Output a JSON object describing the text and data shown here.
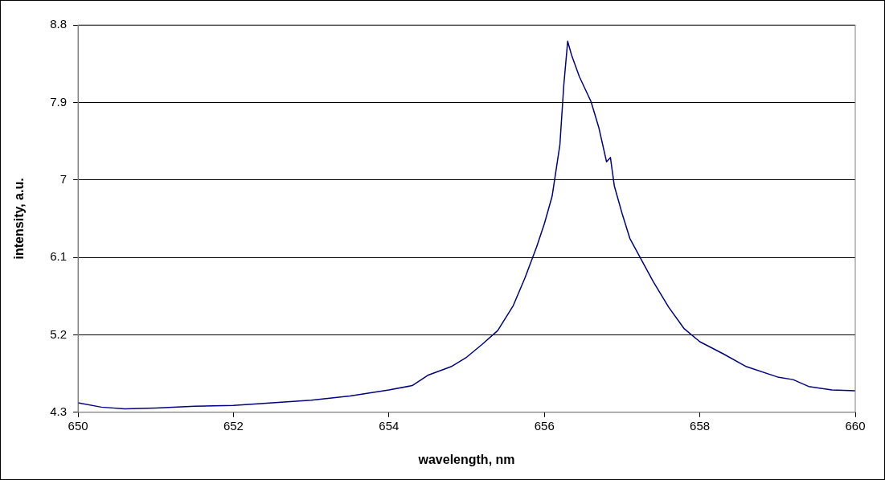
{
  "chart_data": {
    "type": "line",
    "xlabel": "wavelength, nm",
    "ylabel": "intensity, a.u.",
    "x": [
      650,
      650.3,
      650.6,
      651,
      651.5,
      652,
      652.5,
      653,
      653.5,
      654,
      654.3,
      654.5,
      654.8,
      655,
      655.2,
      655.4,
      655.6,
      655.75,
      655.9,
      656,
      656.1,
      656.2,
      656.25,
      656.3,
      656.35,
      656.45,
      656.6,
      656.7,
      656.8,
      656.85,
      656.9,
      657,
      657.1,
      657.25,
      657.4,
      657.6,
      657.8,
      658,
      658.3,
      658.6,
      659,
      659.2,
      659.4,
      659.7,
      660
    ],
    "series": [
      {
        "color": "#000080",
        "values": [
          4.41,
          4.36,
          4.34,
          4.35,
          4.37,
          4.38,
          4.41,
          4.44,
          4.49,
          4.56,
          4.61,
          4.73,
          4.83,
          4.94,
          5.09,
          5.25,
          5.54,
          5.86,
          6.22,
          6.49,
          6.81,
          7.41,
          8.1,
          8.61,
          8.45,
          8.2,
          7.91,
          7.61,
          7.21,
          7.26,
          6.93,
          6.61,
          6.32,
          6.07,
          5.82,
          5.52,
          5.27,
          5.12,
          4.98,
          4.83,
          4.71,
          4.68,
          4.6,
          4.56,
          4.55
        ]
      }
    ],
    "xlim": [
      650,
      660
    ],
    "xticks": [
      650,
      652,
      654,
      656,
      658,
      660
    ],
    "ylim": [
      4.3,
      8.8
    ],
    "yticks": [
      4.3,
      5.2,
      6.1,
      7,
      7.9,
      8.8
    ],
    "grid": "y",
    "legend": false,
    "marker": "none",
    "line_style": "solid"
  }
}
